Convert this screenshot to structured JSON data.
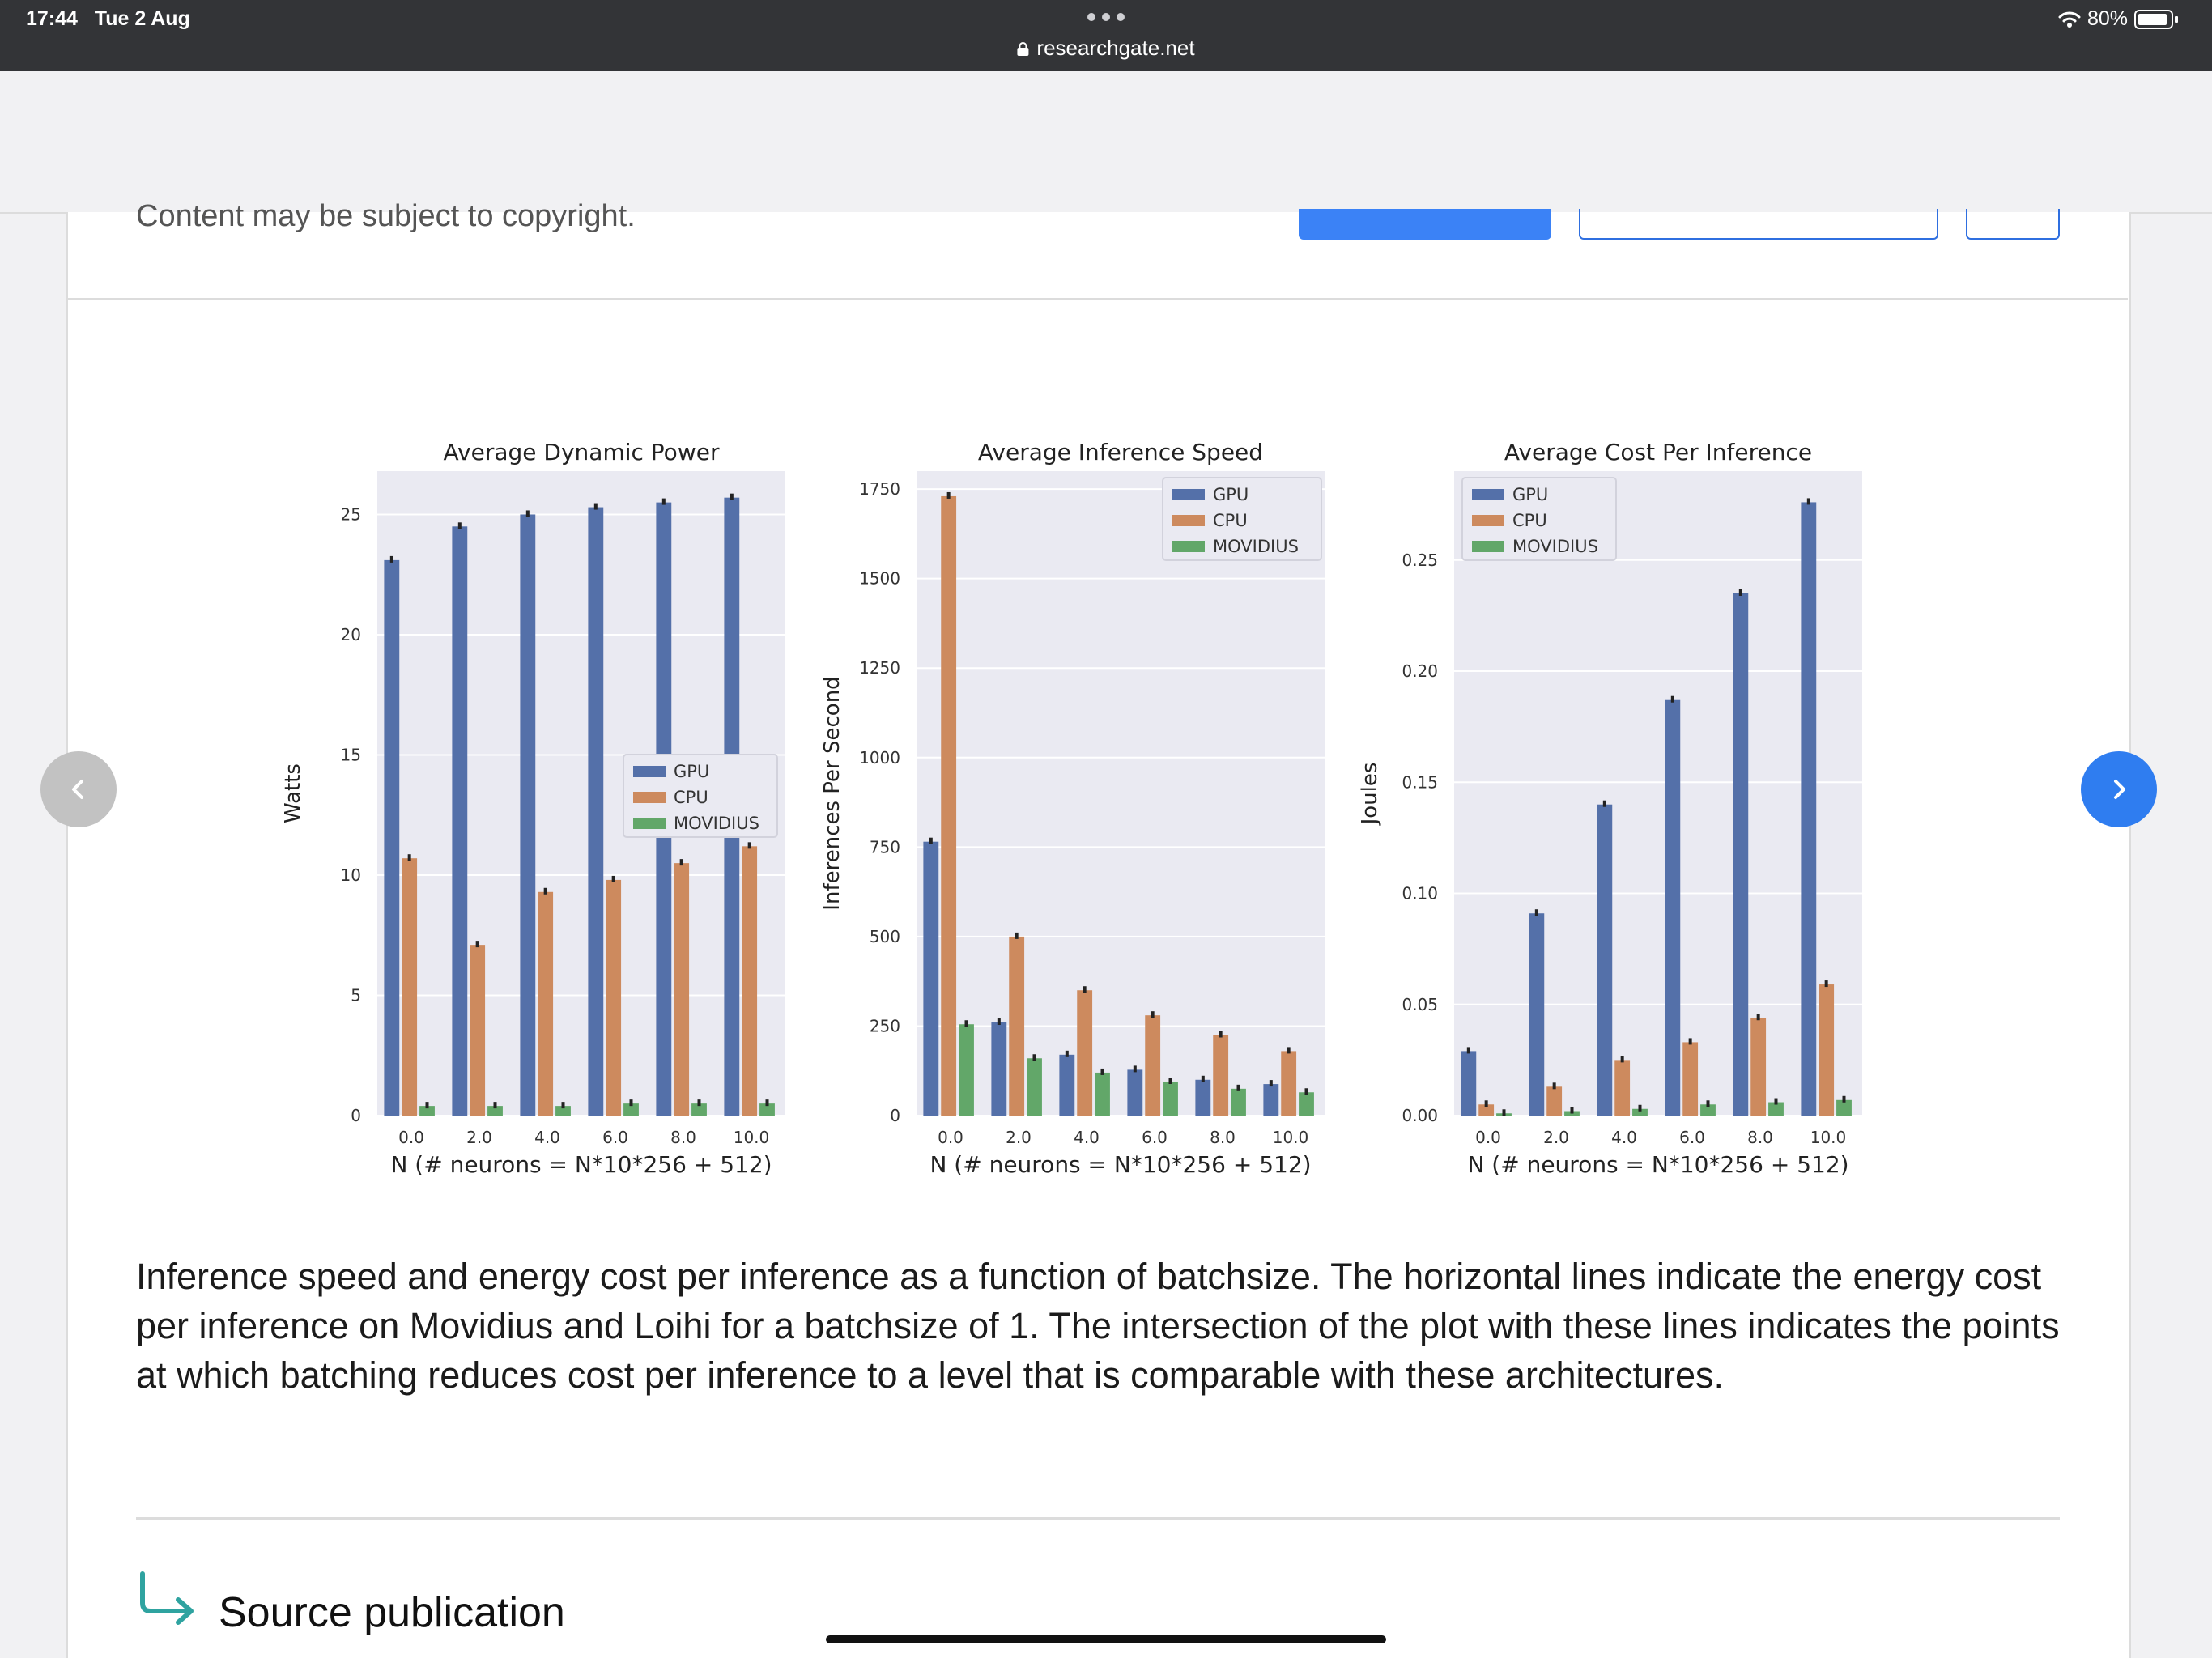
{
  "status_bar": {
    "time": "17:44",
    "date": "Tue 2 Aug",
    "battery": "80%"
  },
  "browser": {
    "url": "researchgate.net"
  },
  "page": {
    "copyright_notice": "Content may be subject to copyright.",
    "caption": "Inference speed and energy cost per inference as a function of batchsize. The horizontal lines indicate the energy cost per inference on Movidius and Loihi for a batchsize of 1. The intersection of the plot with these lines indicates the points at which batching reduces cost per inference to a level that is comparable with these architectures.",
    "source_publication_label": "Source publication"
  },
  "colors": {
    "GPU": "#5470a9",
    "CPU": "#cd8a5e",
    "MOVIDIUS": "#62a769",
    "plot_bg": "#eaeaf2",
    "accent": "#2f7df0"
  },
  "icons": {
    "prev": "chevron-left-icon",
    "next": "chevron-right-icon",
    "source": "arrow-return-icon",
    "lock": "lock-icon",
    "wifi": "wifi-icon"
  },
  "chart_data": [
    {
      "type": "bar",
      "title": "Average Dynamic Power",
      "xlabel": "N (# neurons = N*10*256 + 512)",
      "ylabel": "Watts",
      "categories": [
        "0.0",
        "2.0",
        "4.0",
        "6.0",
        "8.0",
        "10.0"
      ],
      "ylim": [
        0,
        26.8
      ],
      "yticks": [
        "0",
        "5",
        "10",
        "15",
        "20",
        "25"
      ],
      "legend": "center-right",
      "grid": true,
      "series": [
        {
          "name": "GPU",
          "values": [
            23.1,
            24.5,
            25.0,
            25.3,
            25.5,
            25.7
          ]
        },
        {
          "name": "CPU",
          "values": [
            10.7,
            7.1,
            9.3,
            9.8,
            10.5,
            11.2
          ]
        },
        {
          "name": "MOVIDIUS",
          "values": [
            0.4,
            0.4,
            0.4,
            0.5,
            0.5,
            0.5
          ]
        }
      ]
    },
    {
      "type": "bar",
      "title": "Average Inference Speed",
      "xlabel": "N (# neurons = N*10*256 + 512)",
      "ylabel": "Inferences Per Second",
      "categories": [
        "0.0",
        "2.0",
        "4.0",
        "6.0",
        "8.0",
        "10.0"
      ],
      "ylim": [
        0,
        1800
      ],
      "yticks": [
        "0",
        "250",
        "500",
        "750",
        "1000",
        "1250",
        "1500",
        "1750"
      ],
      "legend": "top-right",
      "grid": true,
      "series": [
        {
          "name": "GPU",
          "values": [
            765,
            260,
            170,
            128,
            100,
            88
          ]
        },
        {
          "name": "CPU",
          "values": [
            1730,
            500,
            350,
            280,
            225,
            180
          ]
        },
        {
          "name": "MOVIDIUS",
          "values": [
            255,
            160,
            120,
            95,
            75,
            65
          ]
        }
      ]
    },
    {
      "type": "bar",
      "title": "Average Cost Per Inference",
      "xlabel": "N (# neurons = N*10*256 + 512)",
      "ylabel": "Joules",
      "categories": [
        "0.0",
        "2.0",
        "4.0",
        "6.0",
        "8.0",
        "10.0"
      ],
      "ylim": [
        0,
        0.29
      ],
      "yticks": [
        "0.00",
        "0.05",
        "0.10",
        "0.15",
        "0.20",
        "0.25"
      ],
      "legend": "top-left",
      "grid": true,
      "series": [
        {
          "name": "GPU",
          "values": [
            0.029,
            0.091,
            0.14,
            0.187,
            0.235,
            0.276
          ]
        },
        {
          "name": "CPU",
          "values": [
            0.005,
            0.013,
            0.025,
            0.033,
            0.044,
            0.059
          ]
        },
        {
          "name": "MOVIDIUS",
          "values": [
            0.001,
            0.002,
            0.003,
            0.005,
            0.006,
            0.007
          ]
        }
      ]
    }
  ]
}
